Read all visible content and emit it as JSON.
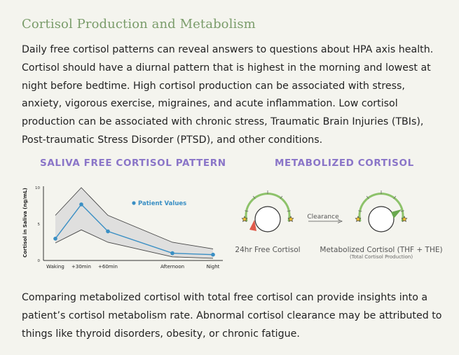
{
  "title": "Cortisol Production and Metabolism",
  "paragraph1": "Daily free cortisol patterns can reveal answers to questions about HPA axis health. Cortisol should have a diurnal pattern that is highest in the morning and lowest at night before bedtime. High cortisol production can be associated with stress, anxiety, vigorous exercise, migraines, and acute inflammation. Low cortisol production can be associated with chronic stress, Traumatic Brain Injuries (TBIs), Post-traumatic Stress Disorder (PTSD), and other conditions.",
  "paragraph2": "Comparing metabolized cortisol with total free cortisol can provide insights into a patient’s cortisol metabolism rate. Abnormal cortisol clearance may be attributed to things like thyroid disorders, obesity, or chronic fatigue.",
  "left_section": {
    "label": "SALIVA FREE CORTISOL PATTERN"
  },
  "right_section": {
    "label": "METABOLIZED CORTISOL",
    "gauge1_label": "24hr Free Cortisol",
    "gauge2_label": "Metabolized Cortisol (THF + THE)",
    "gauge2_sublabel": "(Total Cortisol Production)",
    "arrow_label": "Clearance",
    "gauge1_value": 0.22,
    "gauge2_value": 0.78,
    "colors": {
      "arc": "#8dc26a",
      "low_marker": "#e05a4a",
      "high_marker": "#6aa84f",
      "star": "#f2c230"
    }
  },
  "chart_data": {
    "type": "line",
    "ylabel": "Cortisol in Saliva (ng/mL)",
    "xlabel": "",
    "categories": [
      "Waking",
      "+30min",
      "+60min",
      "Afternoon",
      "Night"
    ],
    "yticks": [
      "0",
      "5",
      "10"
    ],
    "ylim": [
      0,
      10
    ],
    "series": [
      {
        "name": "Patient Values",
        "values": [
          3.0,
          7.7,
          4.0,
          1.0,
          0.8
        ]
      }
    ],
    "range_upper": [
      6.2,
      10.0,
      6.2,
      2.5,
      1.6
    ],
    "range_lower": [
      2.4,
      4.2,
      2.5,
      0.5,
      0.3
    ],
    "colors": {
      "line": "#3a8fc4",
      "band": "#d8d8d8",
      "band_edge": "#444444"
    }
  }
}
